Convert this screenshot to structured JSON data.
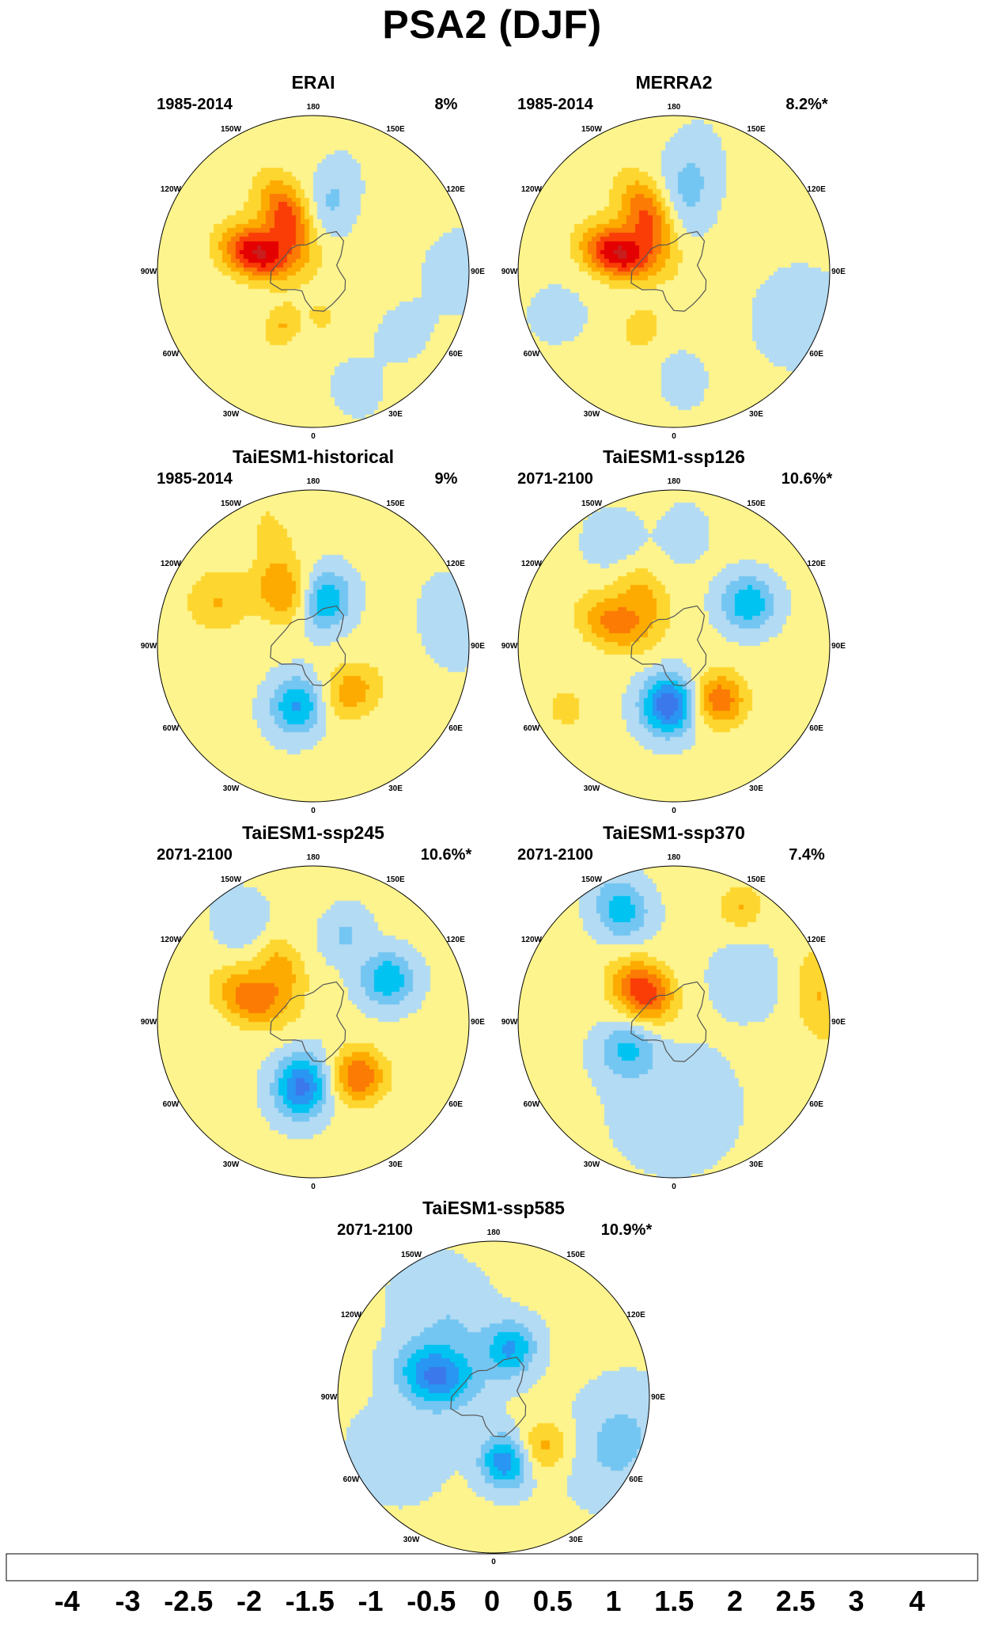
{
  "figure": {
    "title": "PSA2 (DJF)"
  },
  "chart_data": {
    "type": "heatmap",
    "projection": "south-polar-stereographic",
    "longitude_labels": [
      "0",
      "30E",
      "60E",
      "90E",
      "120E",
      "150E",
      "180",
      "150W",
      "120W",
      "90W",
      "60W",
      "30W"
    ],
    "colorbar": {
      "tick_labels": [
        "-4",
        "-3",
        "-2.5",
        "-2",
        "-1.5",
        "-1",
        "-0.5",
        "0",
        "0.5",
        "1",
        "1.5",
        "2",
        "2.5",
        "3",
        "4"
      ],
      "colors": [
        "#8a1ff5",
        "#1c00f5",
        "#2f47e6",
        "#3b78eb",
        "#2896f2",
        "#00c3f2",
        "#74c6f2",
        "#b3dbf3",
        "#fef48d",
        "#fdd630",
        "#fdab00",
        "#fb7b05",
        "#fa3c06",
        "#e40000",
        "#c81e1e",
        "#fdb3b3"
      ]
    },
    "panels": [
      {
        "title": "ERAI",
        "period": "1985-2014",
        "variance": "8%",
        "blobs": [
          [
            -108,
            0.38,
            2.8,
            0.16,
            0.11
          ],
          [
            -155,
            0.4,
            1.9,
            0.18,
            0.1
          ],
          [
            -135,
            0.3,
            0.3,
            0.3,
            0.15
          ],
          [
            165,
            0.46,
            -0.7,
            0.18,
            0.1
          ],
          [
            -30,
            0.4,
            0.9,
            0.1,
            0.08
          ],
          [
            10,
            0.3,
            0.5,
            0.08,
            0.06
          ],
          [
            20,
            0.8,
            -0.3,
            0.14,
            0.12
          ],
          [
            55,
            0.7,
            -0.3,
            0.12,
            0.14
          ],
          [
            90,
            0.95,
            -0.3,
            0.18,
            0.2
          ]
        ]
      },
      {
        "title": "MERRA2",
        "period": "1985-2014",
        "variance": "8.2%*",
        "blobs": [
          [
            -108,
            0.38,
            2.8,
            0.16,
            0.11
          ],
          [
            -155,
            0.4,
            1.8,
            0.18,
            0.1
          ],
          [
            -135,
            0.3,
            0.3,
            0.3,
            0.15
          ],
          [
            170,
            0.55,
            -0.8,
            0.22,
            0.12
          ],
          [
            -30,
            0.42,
            0.8,
            0.1,
            0.08
          ],
          [
            5,
            0.7,
            -0.4,
            0.12,
            0.1
          ],
          [
            70,
            0.85,
            -0.4,
            0.2,
            0.22
          ],
          [
            -70,
            0.8,
            -0.3,
            0.14,
            0.14
          ]
        ]
      },
      {
        "title": "TaiESM1-historical",
        "period": "1985-2014",
        "variance": "9%",
        "blobs": [
          [
            -15,
            0.4,
            -1.7,
            0.13,
            0.12
          ],
          [
            165,
            0.3,
            -1.7,
            0.13,
            0.11
          ],
          [
            40,
            0.38,
            1.2,
            0.12,
            0.14
          ],
          [
            -150,
            0.4,
            1.3,
            0.15,
            0.12
          ],
          [
            -115,
            0.68,
            0.9,
            0.14,
            0.14
          ],
          [
            100,
            0.9,
            -0.6,
            0.12,
            0.18
          ],
          [
            -160,
            0.75,
            0.5,
            0.2,
            0.1
          ]
        ]
      },
      {
        "title": "TaiESM1-ssp126",
        "period": "2071-2100",
        "variance": "10.6%*",
        "blobs": [
          [
            -5,
            0.38,
            -2.6,
            0.13,
            0.12
          ],
          [
            40,
            0.45,
            1.8,
            0.12,
            0.12
          ],
          [
            120,
            0.55,
            -1.6,
            0.12,
            0.12
          ],
          [
            -112,
            0.4,
            1.6,
            0.17,
            0.12
          ],
          [
            -150,
            0.38,
            0.9,
            0.15,
            0.1
          ],
          [
            -60,
            0.8,
            0.6,
            0.1,
            0.1
          ],
          [
            -150,
            0.78,
            -0.6,
            0.12,
            0.12
          ],
          [
            175,
            0.72,
            -0.5,
            0.12,
            0.1
          ]
        ]
      },
      {
        "title": "TaiESM1-ssp245",
        "period": "2071-2100",
        "variance": "10.6%*",
        "blobs": [
          [
            -10,
            0.42,
            -2.3,
            0.14,
            0.12
          ],
          [
            40,
            0.45,
            1.9,
            0.12,
            0.12
          ],
          [
            120,
            0.55,
            -1.6,
            0.12,
            0.12
          ],
          [
            -112,
            0.42,
            1.8,
            0.17,
            0.12
          ],
          [
            -150,
            0.42,
            1.0,
            0.15,
            0.1
          ],
          [
            -145,
            0.78,
            -0.6,
            0.14,
            0.12
          ],
          [
            160,
            0.6,
            -0.7,
            0.12,
            0.1
          ]
        ]
      },
      {
        "title": "TaiESM1-ssp370",
        "period": "2071-2100",
        "variance": "7.4%",
        "blobs": [
          [
            -135,
            0.28,
            2.3,
            0.15,
            0.12
          ],
          [
            -60,
            0.35,
            -1.2,
            0.13,
            0.12
          ],
          [
            -155,
            0.8,
            -1.4,
            0.14,
            0.12
          ],
          [
            100,
            0.95,
            0.9,
            0.12,
            0.22
          ],
          [
            150,
            0.85,
            0.9,
            0.1,
            0.1
          ],
          [
            0,
            0.55,
            -0.6,
            0.25,
            0.25
          ],
          [
            120,
            0.55,
            -0.4,
            0.18,
            0.18
          ]
        ]
      },
      {
        "title": "TaiESM1-ssp585",
        "period": "2071-2100",
        "variance": "10.9%*",
        "blobs": [
          [
            10,
            0.42,
            -2.0,
            0.12,
            0.11
          ],
          [
            -110,
            0.4,
            -2.1,
            0.17,
            0.13
          ],
          [
            160,
            0.33,
            -1.6,
            0.12,
            0.11
          ],
          [
            45,
            0.45,
            1.1,
            0.11,
            0.12
          ],
          [
            -150,
            0.55,
            -0.6,
            0.3,
            0.2
          ],
          [
            70,
            0.85,
            -0.8,
            0.2,
            0.25
          ],
          [
            -60,
            0.7,
            -0.6,
            0.2,
            0.2
          ]
        ]
      }
    ]
  }
}
